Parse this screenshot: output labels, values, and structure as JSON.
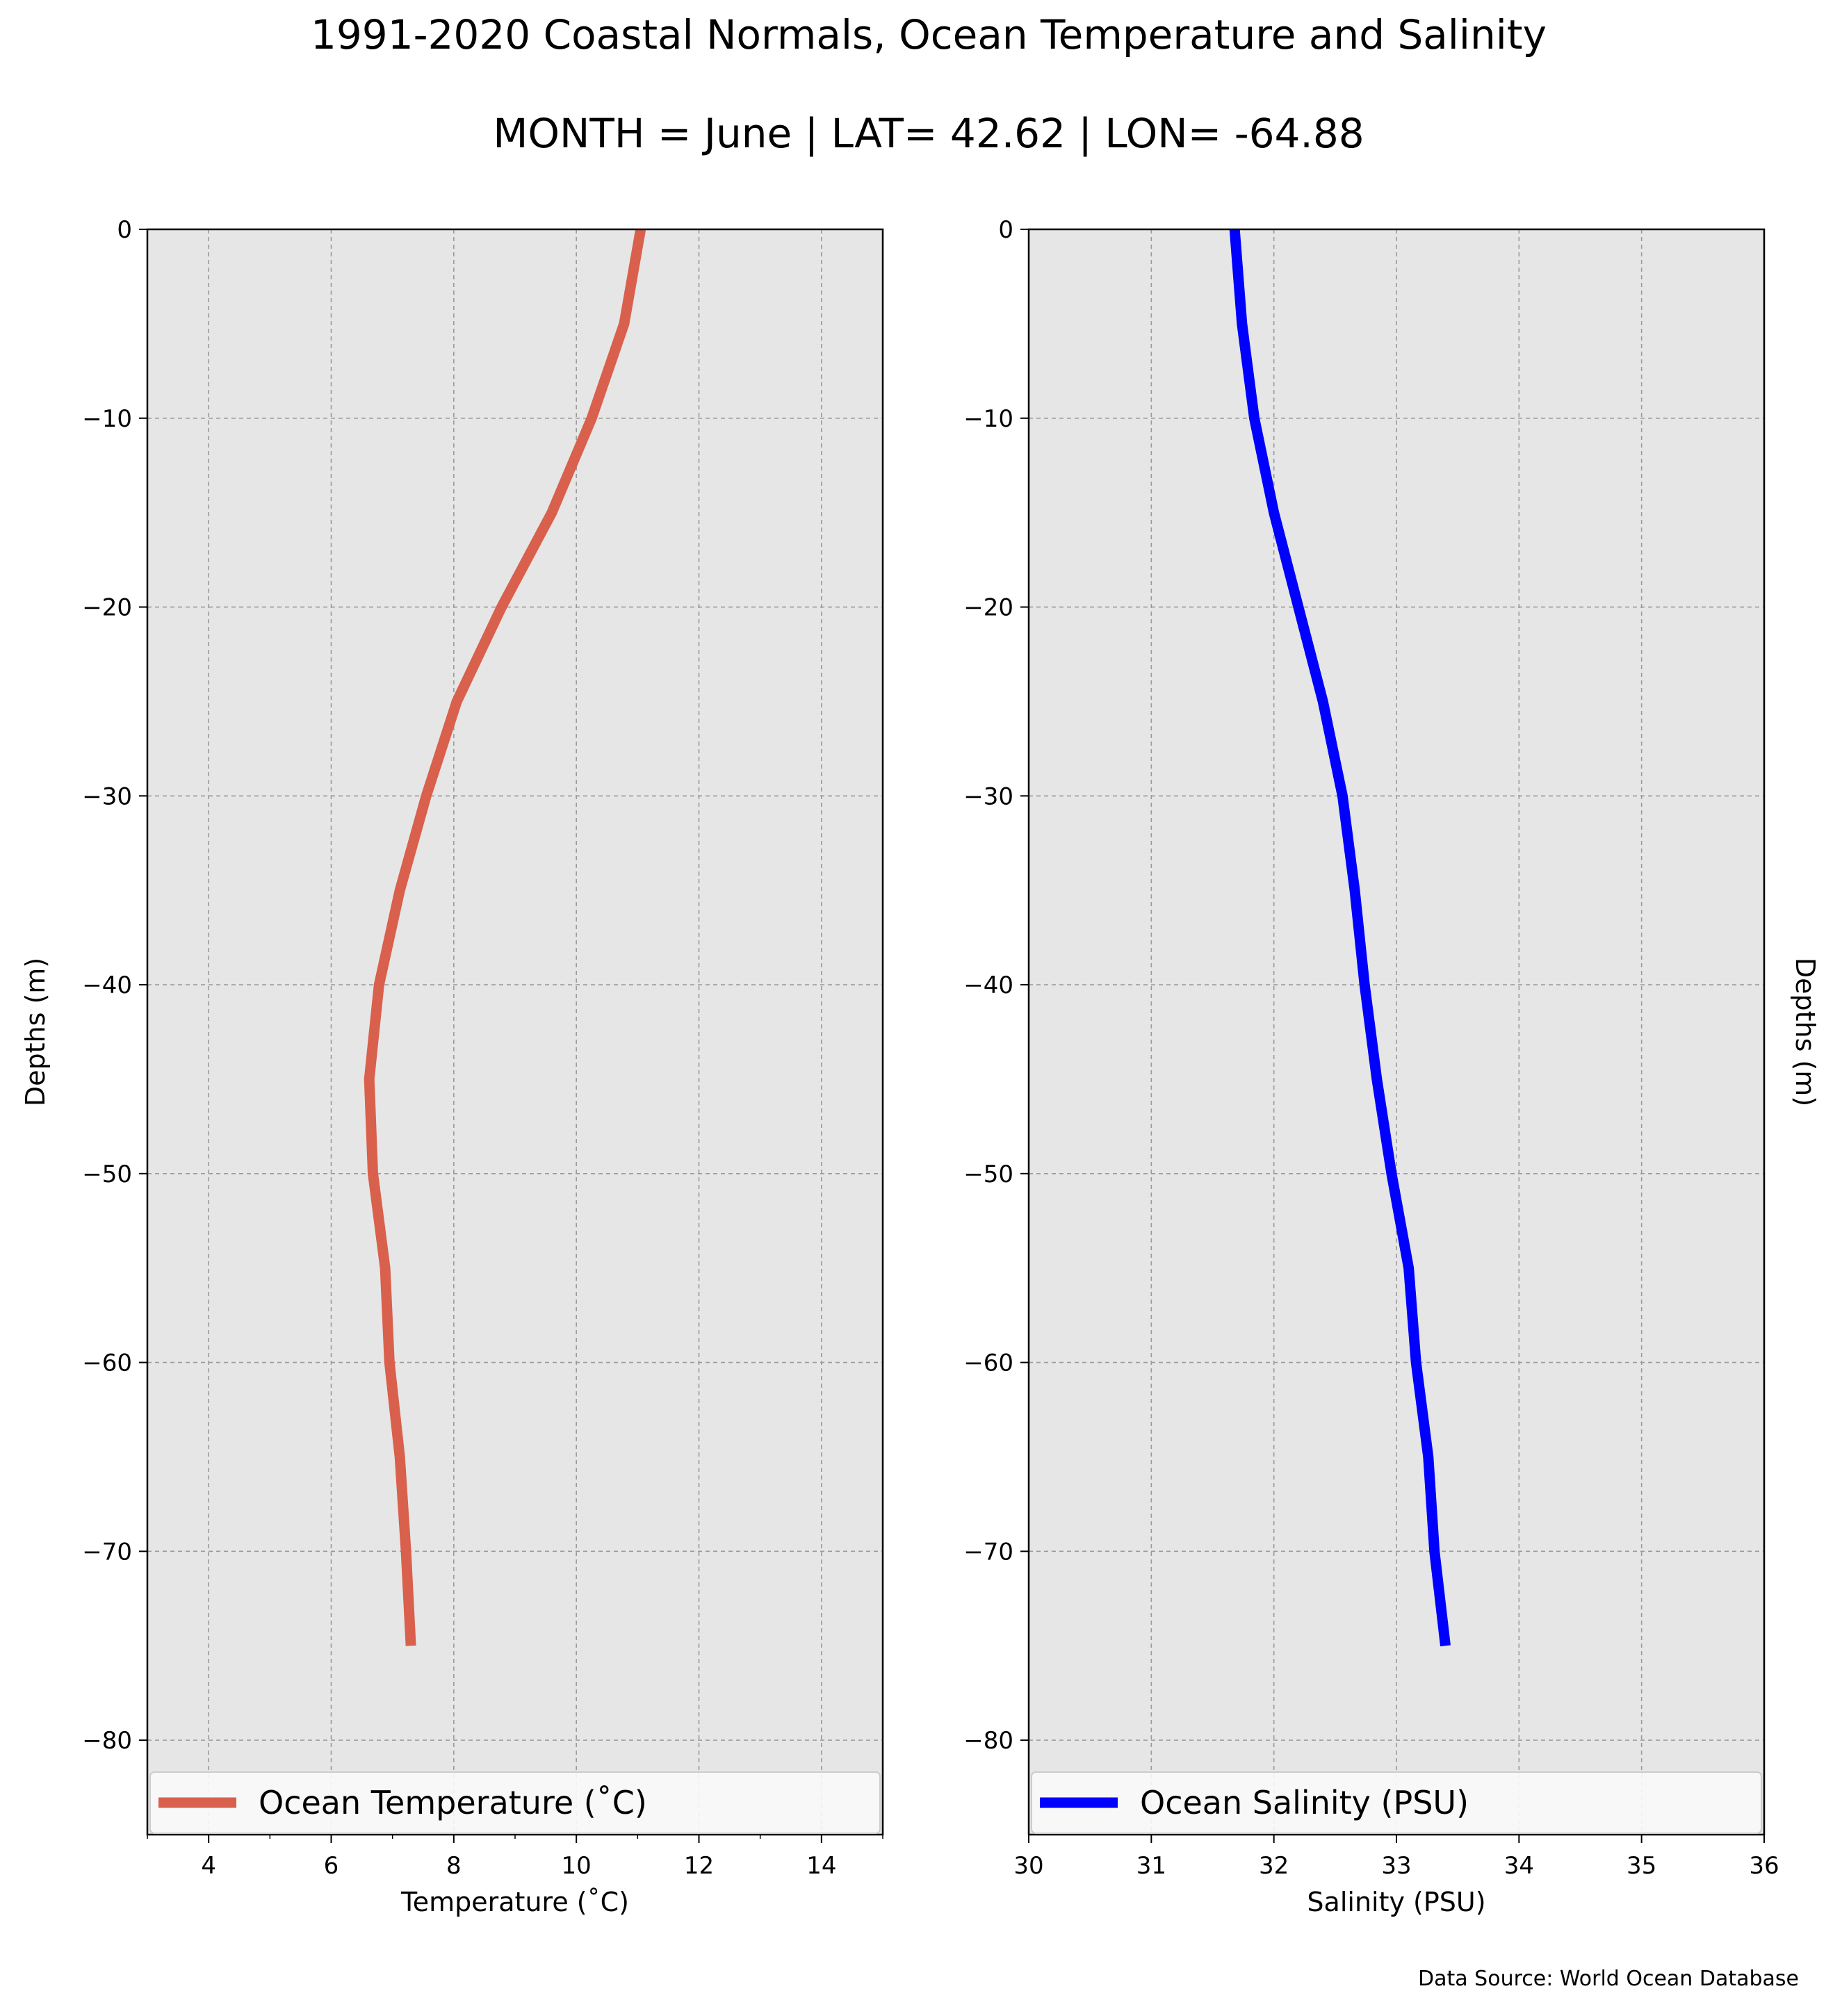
{
  "title": "1991-2020 Coastal Normals, Ocean Temperature and Salinity",
  "subtitle": "MONTH = June | LAT= 42.62 | LON= -64.88",
  "source": "Data Source: World Ocean Database",
  "chart_data": [
    {
      "type": "line",
      "xlabel": "Temperature ($^\\circ$C)",
      "xlabel_display": "Temperature (˚C)",
      "ylabel": "Depths (m)",
      "xlim": [
        3,
        15
      ],
      "ylim": [
        -85,
        0
      ],
      "xticks": [
        4,
        6,
        8,
        10,
        12,
        14
      ],
      "yticks": [
        0,
        -10,
        -20,
        -30,
        -40,
        -50,
        -60,
        -70,
        -80
      ],
      "ytick_labels": [
        "0",
        "−10",
        "−20",
        "−30",
        "−40",
        "−50",
        "−60",
        "−70",
        "−80"
      ],
      "grid": true,
      "legend_position": "bottom",
      "series": [
        {
          "name": "Ocean Temperature (˚C)",
          "color": "#d9604c",
          "x": [
            11.05,
            10.78,
            10.25,
            9.6,
            8.78,
            8.05,
            7.55,
            7.12,
            6.78,
            6.62,
            6.68,
            6.88,
            6.95,
            7.12,
            7.22,
            7.3
          ],
          "y": [
            0,
            -5,
            -10,
            -15,
            -20,
            -25,
            -30,
            -35,
            -40,
            -45,
            -50,
            -55,
            -60,
            -65,
            -70,
            -75
          ]
        }
      ]
    },
    {
      "type": "line",
      "xlabel": "Salinity (PSU)",
      "ylabel": "Depths (m)",
      "xlim": [
        30,
        36
      ],
      "ylim": [
        -85,
        0
      ],
      "xticks": [
        30,
        31,
        32,
        33,
        34,
        35,
        36
      ],
      "yticks": [
        0,
        -10,
        -20,
        -30,
        -40,
        -50,
        -60,
        -70,
        -80
      ],
      "ytick_labels": [
        "0",
        "−10",
        "−20",
        "−30",
        "−40",
        "−50",
        "−60",
        "−70",
        "−80"
      ],
      "grid": true,
      "legend_position": "bottom",
      "series": [
        {
          "name": "Ocean Salinity (PSU)",
          "color": "#0000ff",
          "x": [
            31.68,
            31.74,
            31.84,
            32.0,
            32.2,
            32.4,
            32.56,
            32.66,
            32.74,
            32.84,
            32.96,
            33.1,
            33.16,
            33.26,
            33.31,
            33.4
          ],
          "y": [
            0,
            -5,
            -10,
            -15,
            -20,
            -25,
            -30,
            -35,
            -40,
            -45,
            -50,
            -55,
            -60,
            -65,
            -70,
            -75
          ]
        }
      ]
    }
  ]
}
